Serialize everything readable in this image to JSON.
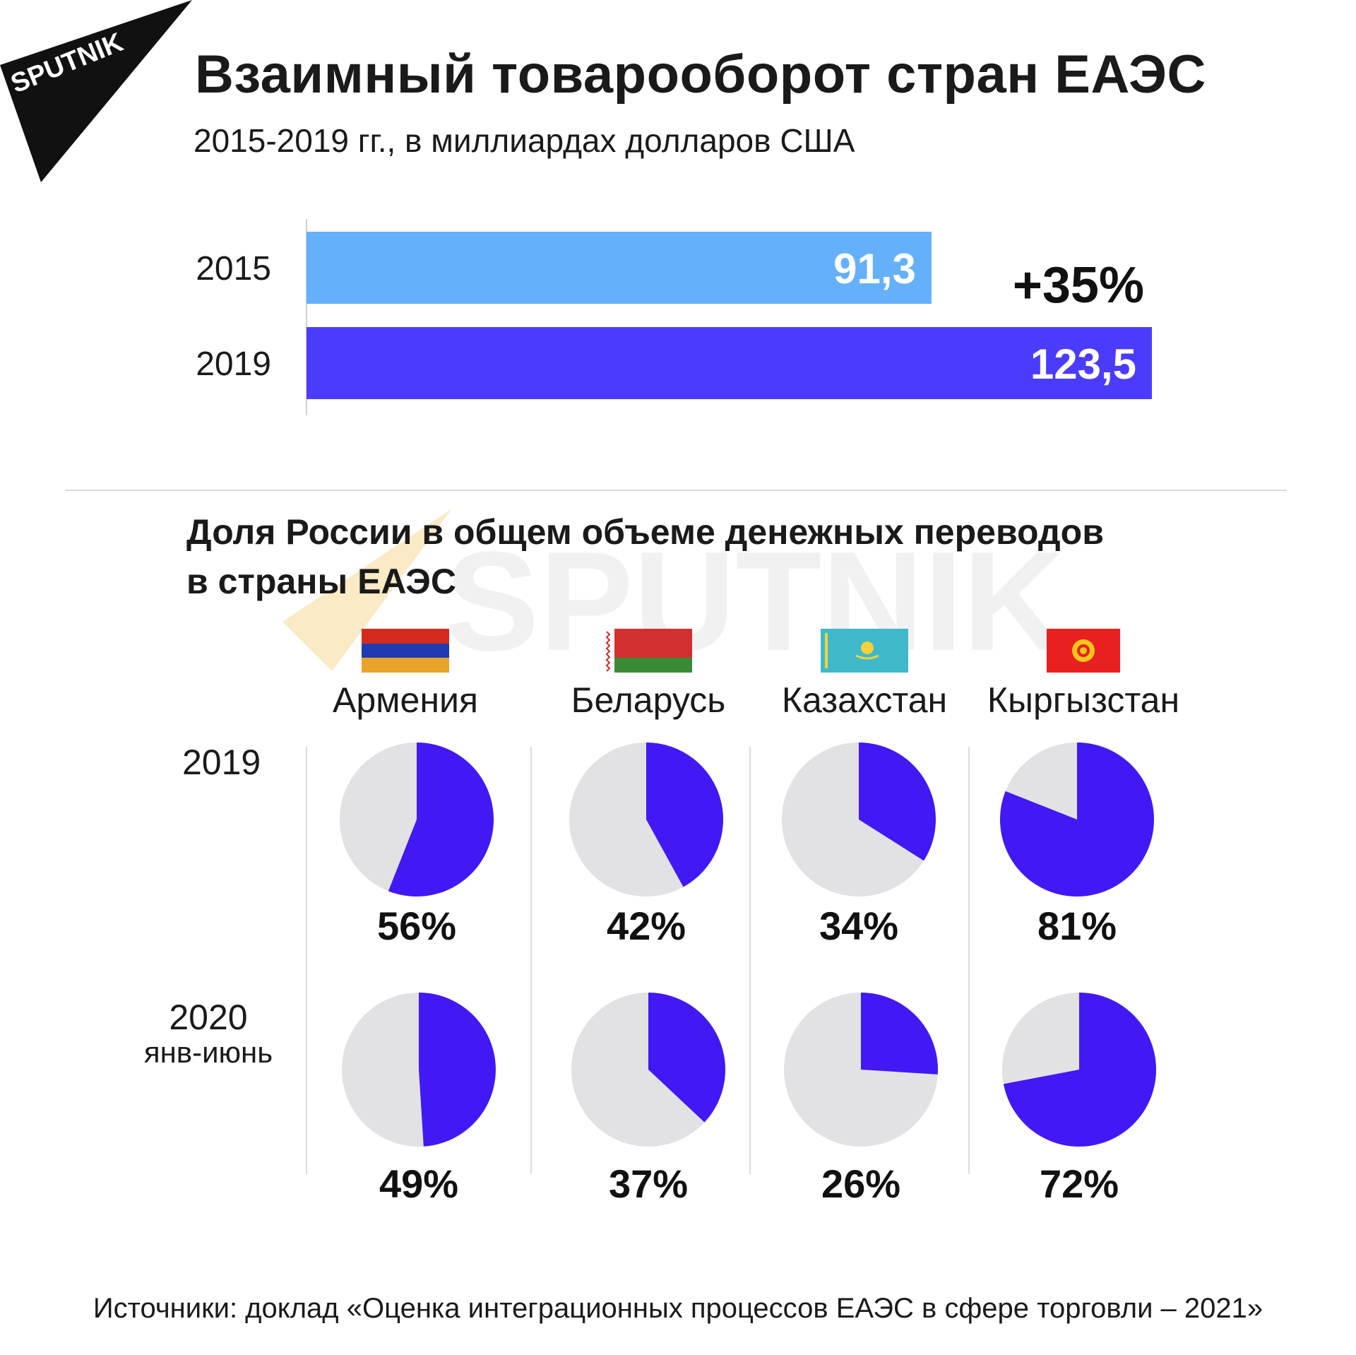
{
  "brand": {
    "logo_text": "SPUTNIK",
    "watermark_text": "SPUTNIK"
  },
  "header": {
    "title": "Взаимный товарооборот стран ЕАЭС",
    "subtitle": "2015-2019 гг., в миллиардах долларов США"
  },
  "colors": {
    "bar_2015": "#64b0fb",
    "bar_2019": "#4b3cfb",
    "pie_share": "#4218f5",
    "pie_rest": "#e2e2e5"
  },
  "section": {
    "title_line1": "Доля России в общем объеме денежных переводов",
    "title_line2": "в страны ЕАЭС"
  },
  "row_labels": {
    "row1": "2019",
    "row2_line1": "2020",
    "row2_line2": "янв-июнь"
  },
  "chart_data": [
    {
      "type": "bar",
      "orientation": "horizontal",
      "categories": [
        "2015",
        "2019"
      ],
      "values": [
        91.3,
        123.5
      ],
      "value_labels": [
        "91,3",
        "123,5"
      ],
      "annotation": "+35%",
      "xlim": [
        0,
        123.5
      ]
    },
    {
      "type": "pie",
      "countries": [
        {
          "name": "Армения",
          "flag_icon": "armenia-flag-icon",
          "values": [
            56,
            49
          ],
          "labels": [
            "56%",
            "49%"
          ]
        },
        {
          "name": "Беларусь",
          "flag_icon": "belarus-flag-icon",
          "values": [
            42,
            37
          ],
          "labels": [
            "42%",
            "37%"
          ]
        },
        {
          "name": "Казахстан",
          "flag_icon": "kazakhstan-flag-icon",
          "values": [
            34,
            26
          ],
          "labels": [
            "34%",
            "26%"
          ]
        },
        {
          "name": "Кыргызстан",
          "flag_icon": "kyrgyzstan-flag-icon",
          "values": [
            81,
            72
          ],
          "labels": [
            "81%",
            "72%"
          ]
        }
      ]
    }
  ],
  "footer": {
    "source": "Источники: доклад «Оценка интеграционных процессов ЕАЭС в сфере торговли – 2021»"
  }
}
